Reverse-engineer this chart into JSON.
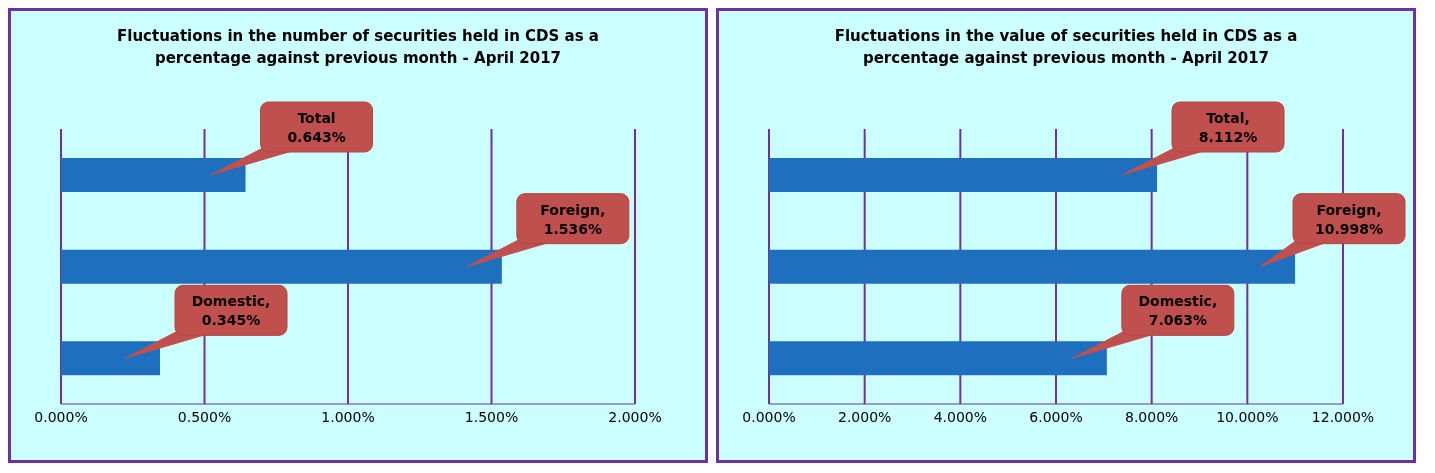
{
  "chart_data": [
    {
      "type": "bar",
      "orientation": "horizontal",
      "title": "Fluctuations in the number of securities held in CDS as a percentage against previous month - April 2017",
      "categories": [
        null,
        null,
        null
      ],
      "values": [
        0.643,
        1.536,
        0.345
      ],
      "value_labels": [
        "Total 0.643%",
        "Foreign, 1.536%",
        "Domestic, 0.345%"
      ],
      "color": "#1f6fbf",
      "xlim": [
        0,
        2
      ],
      "xticks": [
        {
          "value": 0,
          "label": "0.000%"
        },
        {
          "value": 0.5,
          "label": "0.500%"
        },
        {
          "value": 1,
          "label": "1.000%"
        },
        {
          "value": 1.5,
          "label": "1.500%"
        },
        {
          "value": 2,
          "label": "2.000%"
        }
      ],
      "grid": "x"
    },
    {
      "type": "bar",
      "orientation": "horizontal",
      "title": "Fluctuations in the value of securities held in CDS as a percentage against previous month - April 2017",
      "categories": [
        null,
        null,
        null
      ],
      "values": [
        8.112,
        10.998,
        7.063
      ],
      "value_labels": [
        "Total, 8.112%",
        "Foreign, 10.998%",
        "Domestic, 7.063%"
      ],
      "color": "#1f6fbf",
      "xlim": [
        0,
        12
      ],
      "xticks": [
        {
          "value": 0,
          "label": "0.000%"
        },
        {
          "value": 2,
          "label": "2.000%"
        },
        {
          "value": 4,
          "label": "4.000%"
        },
        {
          "value": 6,
          "label": "6.000%"
        },
        {
          "value": 8,
          "label": "8.000%"
        },
        {
          "value": 10,
          "label": "10.000%"
        },
        {
          "value": 12,
          "label": "12.000%"
        }
      ],
      "grid": "x"
    }
  ]
}
